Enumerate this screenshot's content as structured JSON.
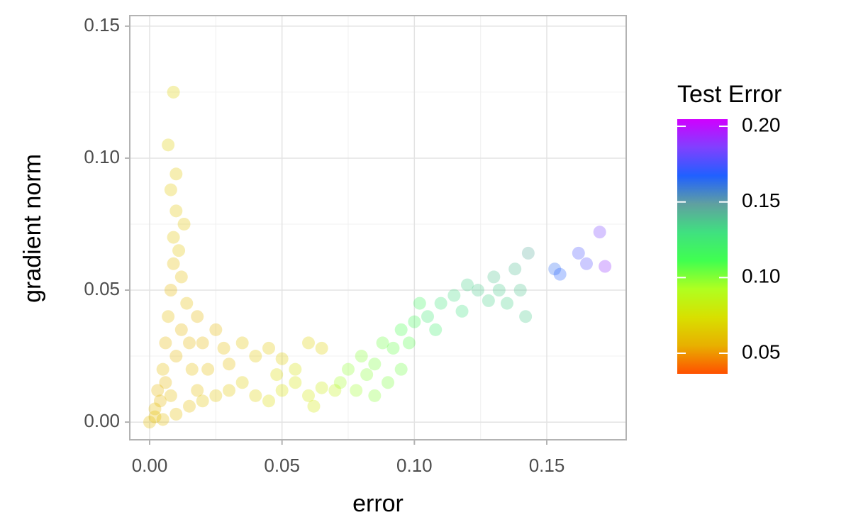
{
  "chart_data": {
    "type": "scatter",
    "x_label": "error",
    "y_label": "gradient norm",
    "xlim": [
      -0.0075,
      0.18
    ],
    "ylim": [
      -0.0067,
      0.154
    ],
    "xticks": [
      {
        "value": 0,
        "label": "0.00"
      },
      0.05,
      {
        "value": 0.1,
        "label": "0.10"
      },
      0.15
    ],
    "yticks": [
      {
        "value": 0,
        "label": "0.00"
      },
      0.05,
      {
        "value": 0.1,
        "label": "0.10"
      },
      0.15
    ],
    "grid": true,
    "minor_grid": true,
    "point_opacity": 0.3,
    "colorbar": {
      "title": "Test Error",
      "clim": [
        0.0364,
        0.2047
      ],
      "ticks": [
        0.05,
        {
          "value": 0.1,
          "label": "0.10"
        },
        0.15,
        {
          "value": 0.2,
          "label": "0.20"
        }
      ],
      "colormap": [
        "#ff5000",
        "#e8b000",
        "#d8e000",
        "#b0ff20",
        "#40ff50",
        "#40e080",
        "#60a0a0",
        "#2060ff",
        "#8040ff",
        "#d000ff"
      ]
    },
    "series": [
      {
        "x": [
          0.0,
          0.002,
          0.003,
          0.005,
          0.006,
          0.007,
          0.008,
          0.009,
          0.009,
          0.01,
          0.008,
          0.01,
          0.007,
          0.009,
          0.004,
          0.006,
          0.01,
          0.012,
          0.014,
          0.012,
          0.011,
          0.013,
          0.015,
          0.018,
          0.02,
          0.022,
          0.025,
          0.028,
          0.03,
          0.035,
          0.04,
          0.045,
          0.05,
          0.06,
          0.065,
          0.002,
          0.005,
          0.01,
          0.015,
          0.018,
          0.02,
          0.025,
          0.03,
          0.035,
          0.04,
          0.016,
          0.008,
          0.045,
          0.05,
          0.055,
          0.06,
          0.065,
          0.07,
          0.055,
          0.048,
          0.062,
          0.072,
          0.075,
          0.078,
          0.08,
          0.082,
          0.085,
          0.088,
          0.09,
          0.092,
          0.095,
          0.098,
          0.1,
          0.102,
          0.085,
          0.095,
          0.105,
          0.108,
          0.11,
          0.115,
          0.118,
          0.12,
          0.124,
          0.128,
          0.13,
          0.132,
          0.135,
          0.138,
          0.14,
          0.142,
          0.143,
          0.153,
          0.155,
          0.162,
          0.165,
          0.17,
          0.172
        ],
        "values": [
          0.0,
          0.005,
          0.012,
          0.02,
          0.03,
          0.04,
          0.05,
          0.06,
          0.07,
          0.08,
          0.088,
          0.094,
          0.105,
          0.125,
          0.008,
          0.015,
          0.025,
          0.035,
          0.045,
          0.055,
          0.065,
          0.075,
          0.03,
          0.04,
          0.03,
          0.02,
          0.035,
          0.028,
          0.022,
          0.03,
          0.025,
          0.028,
          0.024,
          0.03,
          0.028,
          0.002,
          0.001,
          0.003,
          0.006,
          0.012,
          0.008,
          0.01,
          0.012,
          0.015,
          0.01,
          0.02,
          0.01,
          0.008,
          0.012,
          0.015,
          0.01,
          0.013,
          0.012,
          0.02,
          0.018,
          0.006,
          0.015,
          0.02,
          0.012,
          0.025,
          0.018,
          0.022,
          0.03,
          0.015,
          0.028,
          0.035,
          0.03,
          0.038,
          0.045,
          0.01,
          0.02,
          0.04,
          0.035,
          0.045,
          0.048,
          0.042,
          0.052,
          0.05,
          0.046,
          0.055,
          0.05,
          0.045,
          0.058,
          0.05,
          0.04,
          0.064,
          0.058,
          0.056,
          0.064,
          0.06,
          0.072,
          0.059
        ],
        "color_values": [
          0.06,
          0.06,
          0.058,
          0.06,
          0.058,
          0.06,
          0.058,
          0.06,
          0.062,
          0.062,
          0.064,
          0.064,
          0.066,
          0.068,
          0.058,
          0.058,
          0.058,
          0.058,
          0.06,
          0.06,
          0.062,
          0.062,
          0.058,
          0.058,
          0.058,
          0.06,
          0.058,
          0.06,
          0.06,
          0.062,
          0.064,
          0.064,
          0.066,
          0.068,
          0.068,
          0.06,
          0.06,
          0.06,
          0.06,
          0.06,
          0.062,
          0.062,
          0.064,
          0.066,
          0.068,
          0.06,
          0.06,
          0.072,
          0.074,
          0.076,
          0.078,
          0.08,
          0.085,
          0.075,
          0.072,
          0.078,
          0.095,
          0.098,
          0.096,
          0.1,
          0.1,
          0.102,
          0.104,
          0.102,
          0.106,
          0.11,
          0.108,
          0.114,
          0.118,
          0.1,
          0.104,
          0.125,
          0.122,
          0.128,
          0.132,
          0.13,
          0.134,
          0.136,
          0.134,
          0.138,
          0.136,
          0.134,
          0.14,
          0.138,
          0.136,
          0.145,
          0.165,
          0.168,
          0.175,
          0.178,
          0.185,
          0.19
        ]
      }
    ]
  }
}
